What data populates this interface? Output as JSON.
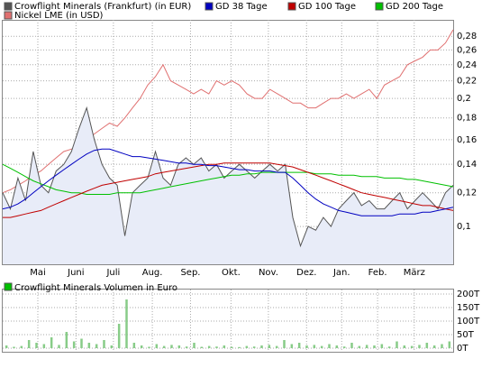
{
  "chart_data": [
    {
      "type": "line",
      "log": true,
      "grid": true,
      "legend": "top-left",
      "ylim": [
        0.0815,
        0.306
      ],
      "yticks": [
        {
          "value": 0.1,
          "label": "0,1"
        },
        {
          "value": 0.12,
          "label": "0,12"
        },
        {
          "value": 0.14,
          "label": "0,14"
        },
        {
          "value": 0.16,
          "label": "0,16"
        },
        {
          "value": 0.18,
          "label": "0,18"
        },
        {
          "value": 0.2,
          "label": "0,2"
        },
        {
          "value": 0.22,
          "label": "0,22"
        },
        {
          "value": 0.24,
          "label": "0,24"
        },
        {
          "value": 0.26,
          "label": "0,26"
        },
        {
          "value": 0.28,
          "label": "0,28"
        }
      ],
      "xlim": [
        0,
        59
      ],
      "xticks": [
        {
          "value": 4.6,
          "label": "Mai"
        },
        {
          "value": 9.6,
          "label": "Juni"
        },
        {
          "value": 14.5,
          "label": "Juli"
        },
        {
          "value": 19.6,
          "label": "Aug."
        },
        {
          "value": 24.6,
          "label": "Sep."
        },
        {
          "value": 29.9,
          "label": "Okt."
        },
        {
          "value": 34.8,
          "label": "Nov."
        },
        {
          "value": 39.8,
          "label": "Dez."
        },
        {
          "value": 44.4,
          "label": "Jan."
        },
        {
          "value": 49.1,
          "label": "Feb."
        },
        {
          "value": 53.9,
          "label": "März"
        }
      ],
      "series": [
        {
          "name": "Crowflight Minerals (Frankfurt) (in EUR)",
          "color": "#555555",
          "fill": "#e8ecf8",
          "values": [
            0.12,
            0.11,
            0.13,
            0.115,
            0.15,
            0.125,
            0.12,
            0.135,
            0.14,
            0.15,
            0.17,
            0.19,
            0.16,
            0.14,
            0.13,
            0.125,
            0.095,
            0.12,
            0.125,
            0.13,
            0.15,
            0.13,
            0.125,
            0.14,
            0.145,
            0.14,
            0.145,
            0.135,
            0.14,
            0.13,
            0.135,
            0.14,
            0.135,
            0.13,
            0.135,
            0.14,
            0.135,
            0.14,
            0.105,
            0.09,
            0.1,
            0.098,
            0.105,
            0.1,
            0.11,
            0.115,
            0.12,
            0.112,
            0.115,
            0.11,
            0.11,
            0.115,
            0.12,
            0.11,
            0.115,
            0.12,
            0.115,
            0.11,
            0.12,
            0.125
          ]
        },
        {
          "name": "GD 38 Tage",
          "color": "#0000c0",
          "values": [
            0.11,
            0.111,
            0.113,
            0.116,
            0.12,
            0.124,
            0.128,
            0.132,
            0.136,
            0.14,
            0.144,
            0.148,
            0.151,
            0.152,
            0.152,
            0.15,
            0.148,
            0.146,
            0.146,
            0.145,
            0.144,
            0.143,
            0.142,
            0.141,
            0.141,
            0.14,
            0.14,
            0.139,
            0.139,
            0.138,
            0.137,
            0.136,
            0.136,
            0.135,
            0.135,
            0.135,
            0.134,
            0.134,
            0.13,
            0.125,
            0.12,
            0.116,
            0.113,
            0.111,
            0.109,
            0.108,
            0.107,
            0.106,
            0.106,
            0.106,
            0.106,
            0.106,
            0.107,
            0.107,
            0.107,
            0.108,
            0.108,
            0.109,
            0.11,
            0.111
          ]
        },
        {
          "name": "GD 100 Tage",
          "color": "#c00000",
          "values": [
            0.105,
            0.105,
            0.106,
            0.107,
            0.108,
            0.109,
            0.111,
            0.113,
            0.115,
            0.117,
            0.119,
            0.121,
            0.123,
            0.125,
            0.126,
            0.127,
            0.128,
            0.129,
            0.13,
            0.131,
            0.133,
            0.134,
            0.135,
            0.136,
            0.137,
            0.138,
            0.139,
            0.14,
            0.14,
            0.141,
            0.141,
            0.141,
            0.141,
            0.141,
            0.141,
            0.141,
            0.14,
            0.139,
            0.138,
            0.136,
            0.134,
            0.132,
            0.13,
            0.128,
            0.126,
            0.124,
            0.122,
            0.12,
            0.119,
            0.118,
            0.117,
            0.116,
            0.115,
            0.114,
            0.113,
            0.112,
            0.112,
            0.111,
            0.11,
            0.109
          ]
        },
        {
          "name": "GD 200 Tage",
          "color": "#00c000",
          "values": [
            0.14,
            0.137,
            0.134,
            0.131,
            0.128,
            0.126,
            0.124,
            0.122,
            0.121,
            0.12,
            0.12,
            0.119,
            0.119,
            0.119,
            0.119,
            0.12,
            0.12,
            0.12,
            0.12,
            0.121,
            0.122,
            0.123,
            0.124,
            0.125,
            0.126,
            0.127,
            0.128,
            0.129,
            0.13,
            0.131,
            0.132,
            0.132,
            0.133,
            0.133,
            0.134,
            0.134,
            0.134,
            0.134,
            0.134,
            0.134,
            0.134,
            0.133,
            0.133,
            0.133,
            0.132,
            0.132,
            0.132,
            0.131,
            0.131,
            0.131,
            0.13,
            0.13,
            0.13,
            0.129,
            0.129,
            0.128,
            0.127,
            0.126,
            0.125,
            0.124
          ]
        },
        {
          "name": "Nickel LME (in USD)",
          "color": "#e07070",
          "values": [
            0.12,
            0.122,
            0.125,
            0.128,
            0.132,
            0.135,
            0.14,
            0.145,
            0.15,
            0.152,
            0.155,
            0.16,
            0.165,
            0.17,
            0.175,
            0.172,
            0.18,
            0.19,
            0.2,
            0.215,
            0.225,
            0.24,
            0.22,
            0.215,
            0.21,
            0.205,
            0.21,
            0.205,
            0.22,
            0.215,
            0.22,
            0.215,
            0.205,
            0.2,
            0.2,
            0.21,
            0.205,
            0.2,
            0.195,
            0.195,
            0.19,
            0.19,
            0.195,
            0.2,
            0.2,
            0.205,
            0.2,
            0.205,
            0.21,
            0.2,
            0.215,
            0.22,
            0.225,
            0.24,
            0.245,
            0.25,
            0.26,
            0.26,
            0.27,
            0.29
          ]
        }
      ]
    },
    {
      "type": "bar",
      "title": "Crowflight Minerals Volumen in Euro",
      "color": "#88cc88",
      "ylim": [
        0,
        200
      ],
      "yticks": [
        {
          "value": 0,
          "label": "0T"
        },
        {
          "value": 50,
          "label": "50T"
        },
        {
          "value": 100,
          "label": "100T"
        },
        {
          "value": 150,
          "label": "150T"
        },
        {
          "value": 200,
          "label": "200T"
        }
      ],
      "values": [
        10,
        5,
        8,
        30,
        20,
        15,
        40,
        12,
        60,
        25,
        35,
        20,
        15,
        30,
        10,
        90,
        180,
        20,
        10,
        5,
        15,
        8,
        12,
        10,
        6,
        20,
        5,
        8,
        6,
        10,
        5,
        4,
        8,
        6,
        10,
        12,
        8,
        30,
        15,
        20,
        10,
        12,
        8,
        15,
        10,
        6,
        20,
        8,
        12,
        10,
        15,
        6,
        25,
        10,
        8,
        12,
        20,
        10,
        15,
        25
      ]
    }
  ]
}
